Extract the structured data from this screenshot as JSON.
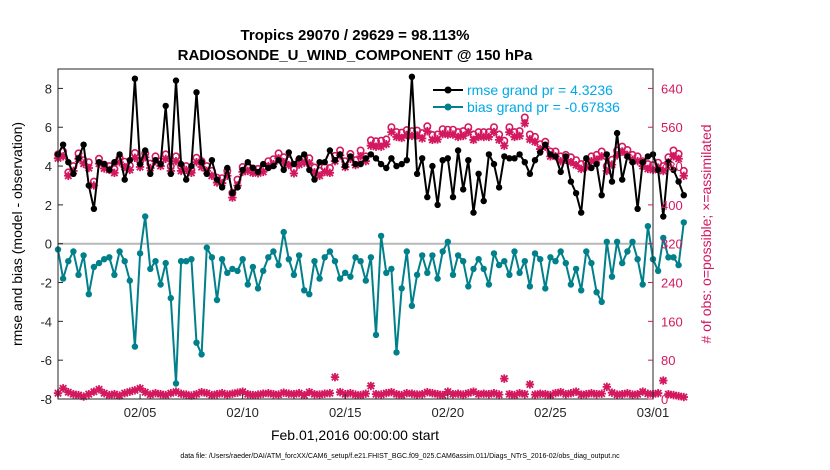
{
  "chart_data": {
    "type": "line",
    "title_line1": "Tropics 29070 / 29629 = 98.113%",
    "title_line2": "RADIOSONDE_U_WIND_COMPONENT @ 150 hPa",
    "xlabel": "Feb.01,2016 00:00:00 start",
    "ylabel_left": "rmse and bias (model - observation)",
    "ylabel_right": "# of obs: o=possible; ×=assimilated",
    "footnote": "data file: /Users/raeder/DAI/ATM_forcXX/CAM6_setup/f.e21.FHIST_BGC.f09_025.CAM6assim.011/Diags_NTrS_2016-02/obs_diag_output.nc",
    "x_start_day": 1.0,
    "x_step_days": 0.25,
    "xlim": [
      1.0,
      30.0
    ],
    "ylim_left": [
      -8,
      9
    ],
    "ylim_right": [
      0,
      680
    ],
    "x_ticks": [
      {
        "day": 5,
        "label": "02/05"
      },
      {
        "day": 10,
        "label": "02/10"
      },
      {
        "day": 15,
        "label": "02/15"
      },
      {
        "day": 20,
        "label": "02/20"
      },
      {
        "day": 25,
        "label": "02/25"
      },
      {
        "day": 30,
        "label": "03/01"
      }
    ],
    "y_ticks_left": [
      {
        "value": 8,
        "label": "8"
      },
      {
        "value": 6,
        "label": "6"
      },
      {
        "value": 4,
        "label": "4"
      },
      {
        "value": 2,
        "label": "2"
      },
      {
        "value": 0,
        "label": "0"
      },
      {
        "value": -2,
        "label": "-2"
      },
      {
        "value": -4,
        "label": "-4"
      },
      {
        "value": -6,
        "label": "-6"
      },
      {
        "value": -8,
        "label": "-8"
      }
    ],
    "y_ticks_right": [
      {
        "value": 640,
        "label": "640"
      },
      {
        "value": 560,
        "label": "560"
      },
      {
        "value": 480,
        "label": "480"
      },
      {
        "value": 400,
        "label": "400"
      },
      {
        "value": 320,
        "label": "320"
      },
      {
        "value": 240,
        "label": "240"
      },
      {
        "value": 160,
        "label": "160"
      },
      {
        "value": 80,
        "label": "80"
      },
      {
        "value": 0,
        "label": "0"
      }
    ],
    "zero_line": 0,
    "legend": [
      {
        "label": "rmse grand pr = 4.3236",
        "color": "#000000"
      },
      {
        "label": "bias grand pr = -0.67836",
        "color": "#00808a"
      }
    ],
    "series": [
      {
        "name": "rmse",
        "axis": "left",
        "color": "#000000",
        "values": [
          4.6,
          5.1,
          4.2,
          3.6,
          4.4,
          5.1,
          3.0,
          1.8,
          4.2,
          4.1,
          3.8,
          4.2,
          4.6,
          3.3,
          4.3,
          8.5,
          4.1,
          4.8,
          3.6,
          4.3,
          4.1,
          7.1,
          3.6,
          8.4,
          4.1,
          3.3,
          4.0,
          7.8,
          4.2,
          3.6,
          4.3,
          3.3,
          2.9,
          3.9,
          2.6,
          2.9,
          3.8,
          4.2,
          3.9,
          3.7,
          4.1,
          3.9,
          4.0,
          4.3,
          3.8,
          4.7,
          4.1,
          4.4,
          4.6,
          3.8,
          3.3,
          4.2,
          4.2,
          4.8,
          4.3,
          4.6,
          4.0,
          4.5,
          4.1,
          4.1,
          4.4,
          4.6,
          4.4,
          4.1,
          3.9,
          4.4,
          4.0,
          4.1,
          4.3,
          8.6,
          3.6,
          4.4,
          2.4,
          4.0,
          2.0,
          4.3,
          4.4,
          2.4,
          4.8,
          2.8,
          4.3,
          1.6,
          3.6,
          2.2,
          4.6,
          4.1,
          2.9,
          4.5,
          4.4,
          4.4,
          4.6,
          4.2,
          3.6,
          4.3,
          4.7,
          5.1,
          4.6,
          4.5,
          3.7,
          4.5,
          3.2,
          2.6,
          1.6,
          4.4,
          3.9,
          4.1,
          2.5,
          4.6,
          3.2,
          5.7,
          3.3,
          4.5,
          4.2,
          1.8,
          4.2,
          4.5,
          4.6,
          3.8,
          1.4,
          4.2,
          3.8,
          3.2,
          2.5
        ]
      },
      {
        "name": "bias",
        "axis": "left",
        "color": "#00808a",
        "values": [
          -0.3,
          -1.8,
          -0.9,
          -0.4,
          -1.6,
          -0.6,
          -2.6,
          -1.2,
          -1.0,
          -0.8,
          -0.7,
          -1.6,
          -0.4,
          -0.9,
          -1.9,
          -5.3,
          -0.5,
          1.4,
          -1.3,
          -0.9,
          -2.1,
          -1.0,
          -2.8,
          -7.2,
          -0.9,
          -0.9,
          -0.8,
          -5.1,
          -5.7,
          -0.2,
          -0.7,
          -2.9,
          -0.8,
          -1.5,
          -1.3,
          -1.4,
          -0.8,
          -2.1,
          -1.2,
          -2.3,
          -1.4,
          -0.7,
          -0.4,
          -1.1,
          0.6,
          -0.8,
          -1.6,
          -0.6,
          -2.4,
          -2.6,
          -0.9,
          -1.8,
          -0.7,
          -0.4,
          -0.9,
          -1.8,
          -1.5,
          -1.7,
          -0.7,
          -0.9,
          -1.9,
          -0.7,
          -4.7,
          0.4,
          -1.5,
          -1.3,
          -5.6,
          -2.3,
          -0.4,
          -3.2,
          -1.6,
          -0.6,
          -1.5,
          -0.6,
          -1.8,
          -0.4,
          0.1,
          -1.6,
          -0.6,
          -0.9,
          -2.2,
          -1.3,
          -0.8,
          -1.3,
          -2.1,
          -0.5,
          -1.1,
          -0.9,
          -1.6,
          -0.4,
          -1.5,
          -0.9,
          -2.2,
          -0.5,
          -0.8,
          -2.3,
          -0.7,
          -0.9,
          -0.4,
          -1.0,
          -2.1,
          -1.3,
          -2.4,
          -0.4,
          -1.0,
          -2.5,
          -3.0,
          0.1,
          -1.7,
          0.1,
          -1.0,
          -0.4,
          0.1,
          -0.8,
          -2.1,
          0.9,
          -0.8,
          -1.4,
          0.3,
          -0.7,
          -0.7,
          -1.1,
          1.1
        ]
      },
      {
        "name": "possible",
        "axis": "right",
        "marker": "o",
        "color": "#d3185f",
        "values": [
          504,
          510,
          467,
          480,
          506,
          492,
          488,
          448,
          495,
          483,
          480,
          474,
          497,
          489,
          481,
          507,
          490,
          506,
          485,
          500,
          490,
          504,
          480,
          500,
          480,
          480,
          472,
          497,
          490,
          480,
          470,
          456,
          455,
          470,
          425,
          452,
          478,
          480,
          475,
          474,
          478,
          490,
          494,
          506,
          498,
          492,
          475,
          493,
          497,
          496,
          477,
          470,
          478,
          476,
          501,
          512,
          490,
          505,
          492,
          512,
          500,
          533,
          531,
          532,
          535,
          560,
          550,
          549,
          554,
          552,
          553,
          548,
          562,
          544,
          545,
          556,
          555,
          555,
          550,
          552,
          560,
          545,
          550,
          550,
          550,
          560,
          545,
          532,
          560,
          550,
          552,
          580,
          545,
          540,
          525,
          530,
          510,
          510,
          500,
          503,
          498,
          492,
          484,
          488,
          500,
          503,
          510,
          480,
          493,
          512,
          520,
          513,
          503,
          500,
          490,
          484,
          482,
          487,
          480,
          498,
          512,
          505,
          470
        ]
      },
      {
        "name": "assimilated",
        "axis": "right",
        "marker": "x",
        "color": "#d3185f",
        "values": [
          496,
          500,
          460,
          470,
          495,
          485,
          476,
          440,
          485,
          475,
          472,
          466,
          488,
          478,
          472,
          497,
          478,
          498,
          476,
          490,
          480,
          495,
          470,
          490,
          470,
          472,
          466,
          488,
          478,
          470,
          460,
          446,
          445,
          460,
          415,
          440,
          468,
          470,
          466,
          465,
          468,
          480,
          484,
          496,
          488,
          482,
          465,
          483,
          487,
          486,
          467,
          460,
          468,
          466,
          490,
          502,
          478,
          495,
          482,
          500,
          490,
          522,
          520,
          520,
          525,
          550,
          540,
          538,
          544,
          542,
          543,
          537,
          552,
          534,
          535,
          546,
          545,
          545,
          540,
          542,
          550,
          534,
          540,
          540,
          540,
          550,
          534,
          522,
          550,
          540,
          542,
          568,
          535,
          530,
          515,
          520,
          500,
          500,
          490,
          493,
          488,
          482,
          474,
          478,
          490,
          493,
          500,
          470,
          483,
          502,
          510,
          503,
          493,
          490,
          480,
          474,
          472,
          477,
          470,
          488,
          500,
          495,
          460
        ]
      },
      {
        "name": "assimilated_low",
        "axis": "right",
        "marker": "x",
        "color": "#d3185f",
        "values": [
          12,
          22,
          14,
          10,
          8,
          5,
          10,
          15,
          20,
          12,
          8,
          10,
          7,
          12,
          15,
          18,
          22,
          14,
          9,
          12,
          10,
          8,
          12,
          15,
          11,
          9,
          7,
          10,
          14,
          12,
          8,
          10,
          12,
          9,
          11,
          13,
          15,
          10,
          8,
          9,
          11,
          12,
          10,
          9,
          13,
          11,
          10,
          12,
          8,
          14,
          10,
          9,
          11,
          12,
          45,
          14,
          10,
          12,
          9,
          8,
          11,
          27,
          10,
          9,
          12,
          14,
          10,
          8,
          12,
          11,
          9,
          10,
          14,
          12,
          10,
          8,
          15,
          10,
          11,
          9,
          12,
          15,
          10,
          11,
          10,
          12,
          9,
          42,
          10,
          8,
          12,
          10,
          30,
          9,
          11,
          10,
          8,
          12,
          14,
          10,
          12,
          15,
          9,
          10,
          12,
          10,
          11,
          25,
          13,
          9,
          10,
          12,
          9,
          10,
          15,
          11,
          10,
          12,
          38,
          10,
          8,
          6,
          4
        ]
      }
    ]
  }
}
